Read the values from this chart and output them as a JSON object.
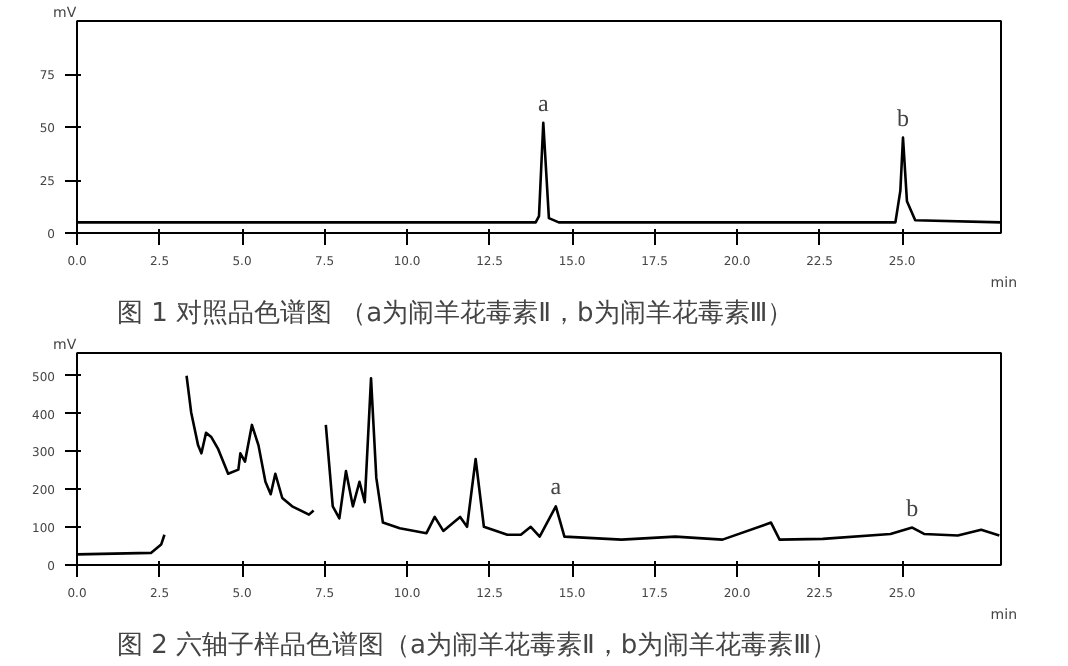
{
  "chart_data": [
    {
      "type": "line",
      "title": "图 1 对照品色谱图 （a为闹羊花毒素Ⅱ，b为闹羊花毒素Ⅲ）",
      "xlabel": "min",
      "ylabel": "mV",
      "x": [
        0,
        13.9,
        14.0,
        14.13,
        14.3,
        14.6,
        24.8,
        24.95,
        25.03,
        25.15,
        25.4,
        28
      ],
      "series": [
        {
          "color": "#000000",
          "values": [
            5,
            5,
            8,
            52,
            7,
            5,
            5,
            20,
            45,
            15,
            6,
            5
          ]
        }
      ],
      "xlim": [
        0,
        28
      ],
      "ylim": [
        0,
        100
      ],
      "xticks": [
        {
          "value": 0,
          "label": "0.0"
        },
        {
          "value": 2.5,
          "label": "2.5"
        },
        {
          "value": 5,
          "label": "5.0"
        },
        {
          "value": 7.5,
          "label": "7.5"
        },
        {
          "value": 10,
          "label": "10.0"
        },
        {
          "value": 12.5,
          "label": "12.5"
        },
        {
          "value": 15,
          "label": "15.0"
        },
        {
          "value": 17.5,
          "label": "17.5"
        },
        {
          "value": 20,
          "label": "20.0"
        },
        {
          "value": 22.5,
          "label": "22.5"
        },
        {
          "value": 25,
          "label": "25.0"
        }
      ],
      "yticks": [
        0,
        25,
        50,
        75
      ],
      "annotations": [
        {
          "text": "a",
          "x": 14.13,
          "y": 52
        },
        {
          "text": "b",
          "x": 25.03,
          "y": 45
        }
      ],
      "grid": false,
      "marker": "none",
      "line_style": "solid"
    },
    {
      "type": "line",
      "title": "图 2 六轴子样品色谱图（a为闹羊花毒素Ⅱ，b为闹羊花毒素Ⅲ）",
      "xlabel": "min",
      "ylabel": "mV",
      "x": [
        0,
        2.24,
        2.55,
        2.65,
        2.75,
        3.26,
        3.32,
        3.46,
        3.67,
        3.77,
        3.91,
        4.07,
        4.28,
        4.58,
        4.89,
        4.95,
        5.09,
        5.3,
        5.5,
        5.71,
        5.87,
        6.01,
        6.22,
        6.52,
        7.03,
        7.17,
        7.3,
        7.48,
        7.54,
        7.75,
        7.95,
        8.15,
        8.36,
        8.56,
        8.72,
        8.91,
        9.07,
        9.27,
        9.78,
        10.59,
        10.84,
        11.1,
        11.61,
        11.82,
        12.08,
        12.33,
        13.04,
        13.45,
        13.75,
        14.02,
        14.51,
        14.77,
        16.5,
        18.13,
        19.56,
        21.03,
        21.29,
        22.6,
        24.65,
        25.31,
        25.67,
        26.69,
        27.4,
        27.95
      ],
      "series": [
        {
          "color": "#000000",
          "values": [
            28,
            32,
            54,
            80,
            null,
            null,
            500,
            403,
            316,
            295,
            349,
            338,
            306,
            241,
            252,
            295,
            273,
            370,
            316,
            220,
            187,
            241,
            177,
            155,
            133,
            144,
            null,
            null,
            370,
            155,
            123,
            248,
            155,
            220,
            166,
            493,
            230,
            112,
            97,
            84,
            127,
            90,
            127,
            101,
            280,
            101,
            80,
            80,
            101,
            75,
            155,
            75,
            67,
            75,
            67,
            112,
            67,
            69,
            82,
            99,
            82,
            78,
            93,
            78
          ]
        }
      ],
      "xlim": [
        0,
        28
      ],
      "ylim": [
        0,
        560
      ],
      "xticks": [
        {
          "value": 0,
          "label": "0.0"
        },
        {
          "value": 2.5,
          "label": "2.5"
        },
        {
          "value": 5,
          "label": "5.0"
        },
        {
          "value": 7.5,
          "label": "7.5"
        },
        {
          "value": 10,
          "label": "10.0"
        },
        {
          "value": 12.5,
          "label": "12.5"
        },
        {
          "value": 15,
          "label": "15.0"
        },
        {
          "value": 17.5,
          "label": "17.5"
        },
        {
          "value": 20,
          "label": "20.0"
        },
        {
          "value": 22.5,
          "label": "22.5"
        },
        {
          "value": 25,
          "label": "25.0"
        }
      ],
      "yticks": [
        0,
        100,
        200,
        300,
        400,
        500
      ],
      "annotations": [
        {
          "text": "a",
          "x": 14.51,
          "y": 155
        },
        {
          "text": "b",
          "x": 25.31,
          "y": 99
        }
      ],
      "grid": false,
      "marker": "none",
      "line_style": "solid"
    }
  ]
}
